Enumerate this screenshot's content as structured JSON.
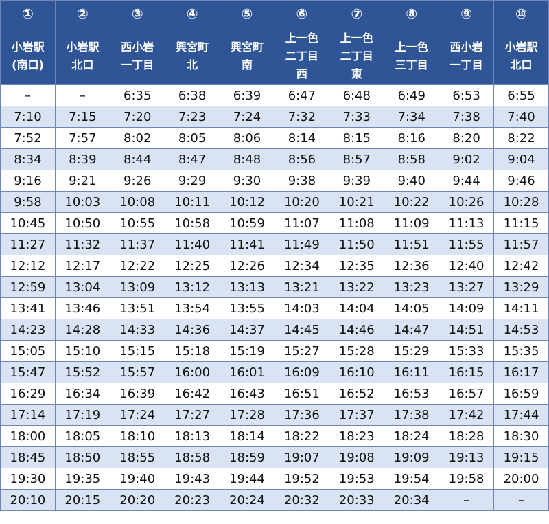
{
  "columns": [
    {
      "number": "①",
      "name": [
        "小岩駅",
        "(南口)"
      ]
    },
    {
      "number": "②",
      "name": [
        "小岩駅",
        "北口"
      ]
    },
    {
      "number": "③",
      "name": [
        "西小岩",
        "一丁目"
      ]
    },
    {
      "number": "④",
      "name": [
        "興宮町",
        "北"
      ]
    },
    {
      "number": "⑤",
      "name": [
        "興宮町",
        "南"
      ]
    },
    {
      "number": "⑥",
      "name": [
        "上一色",
        "二丁目",
        "西"
      ]
    },
    {
      "number": "⑦",
      "name": [
        "上一色",
        "二丁目",
        "東"
      ]
    },
    {
      "number": "⑧",
      "name": [
        "上一色",
        "三丁目"
      ]
    },
    {
      "number": "⑨",
      "name": [
        "西小岩",
        "一丁目"
      ]
    },
    {
      "number": "⑩",
      "name": [
        "小岩駅",
        "北口"
      ]
    }
  ],
  "rows": [
    [
      "–",
      "–",
      "6:35",
      "6:38",
      "6:39",
      "6:47",
      "6:48",
      "6:49",
      "6:53",
      "6:55"
    ],
    [
      "7:10",
      "7:15",
      "7:20",
      "7:23",
      "7:24",
      "7:32",
      "7:33",
      "7:34",
      "7:38",
      "7:40"
    ],
    [
      "7:52",
      "7:57",
      "8:02",
      "8:05",
      "8:06",
      "8:14",
      "8:15",
      "8:16",
      "8:20",
      "8:22"
    ],
    [
      "8:34",
      "8:39",
      "8:44",
      "8:47",
      "8:48",
      "8:56",
      "8:57",
      "8:58",
      "9:02",
      "9:04"
    ],
    [
      "9:16",
      "9:21",
      "9:26",
      "9:29",
      "9:30",
      "9:38",
      "9:39",
      "9:40",
      "9:44",
      "9:46"
    ],
    [
      "9:58",
      "10:03",
      "10:08",
      "10:11",
      "10:12",
      "10:20",
      "10:21",
      "10:22",
      "10:26",
      "10:28"
    ],
    [
      "10:45",
      "10:50",
      "10:55",
      "10:58",
      "10:59",
      "11:07",
      "11:08",
      "11:09",
      "11:13",
      "11:15"
    ],
    [
      "11:27",
      "11:32",
      "11:37",
      "11:40",
      "11:41",
      "11:49",
      "11:50",
      "11:51",
      "11:55",
      "11:57"
    ],
    [
      "12:12",
      "12:17",
      "12:22",
      "12:25",
      "12:26",
      "12:34",
      "12:35",
      "12:36",
      "12:40",
      "12:42"
    ],
    [
      "12:59",
      "13:04",
      "13:09",
      "13:12",
      "13:13",
      "13:21",
      "13:22",
      "13:23",
      "13:27",
      "13:29"
    ],
    [
      "13:41",
      "13:46",
      "13:51",
      "13:54",
      "13:55",
      "14:03",
      "14:04",
      "14:05",
      "14:09",
      "14:11"
    ],
    [
      "14:23",
      "14:28",
      "14:33",
      "14:36",
      "14:37",
      "14:45",
      "14:46",
      "14:47",
      "14:51",
      "14:53"
    ],
    [
      "15:05",
      "15:10",
      "15:15",
      "15:18",
      "15:19",
      "15:27",
      "15:28",
      "15:29",
      "15:33",
      "15:35"
    ],
    [
      "15:47",
      "15:52",
      "15:57",
      "16:00",
      "16:01",
      "16:09",
      "16:10",
      "16:11",
      "16:15",
      "16:17"
    ],
    [
      "16:29",
      "16:34",
      "16:39",
      "16:42",
      "16:43",
      "16:51",
      "16:52",
      "16:53",
      "16:57",
      "16:59"
    ],
    [
      "17:14",
      "17:19",
      "17:24",
      "17:27",
      "17:28",
      "17:36",
      "17:37",
      "17:38",
      "17:42",
      "17:44"
    ],
    [
      "18:00",
      "18:05",
      "18:10",
      "18:13",
      "18:14",
      "18:22",
      "18:23",
      "18:24",
      "18:28",
      "18:30"
    ],
    [
      "18:45",
      "18:50",
      "18:55",
      "18:58",
      "18:59",
      "19:07",
      "19:08",
      "19:09",
      "19:13",
      "19:15"
    ],
    [
      "19:30",
      "19:35",
      "19:40",
      "19:43",
      "19:44",
      "19:52",
      "19:53",
      "19:54",
      "19:58",
      "20:00"
    ],
    [
      "20:10",
      "20:15",
      "20:20",
      "20:23",
      "20:24",
      "20:32",
      "20:33",
      "20:34",
      "–",
      "–"
    ]
  ]
}
